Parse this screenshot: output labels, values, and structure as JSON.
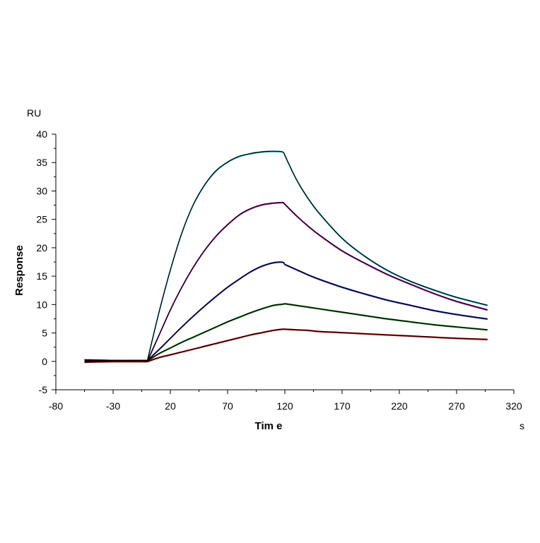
{
  "chart_data": {
    "type": "line",
    "title": "",
    "xlabel": "Tim e",
    "ylabel": "Response",
    "x_unit": "s",
    "y_unit": "RU",
    "xlim": [
      -80,
      320
    ],
    "ylim": [
      -5,
      40
    ],
    "x_ticks": [
      -80,
      -30,
      20,
      70,
      120,
      170,
      220,
      270,
      320
    ],
    "y_ticks": [
      -5,
      0,
      5,
      10,
      15,
      20,
      25,
      30,
      35,
      40
    ],
    "x_tick_labels": [
      "-80",
      "-30",
      "20",
      "70",
      "120",
      "170",
      "220",
      "270",
      "320"
    ],
    "y_tick_labels": [
      "-5",
      "0",
      "5",
      "10",
      "15",
      "20",
      "25",
      "30",
      "35",
      "40"
    ],
    "grid": false,
    "legend": "none",
    "x": [
      -55,
      -30,
      -5,
      0,
      10,
      20,
      30,
      40,
      50,
      60,
      70,
      80,
      90,
      100,
      110,
      118,
      120,
      130,
      140,
      150,
      170,
      190,
      210,
      230,
      250,
      270,
      297
    ],
    "series": [
      {
        "color": "#00c8d0",
        "values": [
          0.2,
          0.1,
          0.1,
          0.1,
          8.5,
          16.0,
          22.5,
          27.5,
          31.0,
          33.5,
          35.0,
          36.0,
          36.5,
          36.8,
          36.9,
          36.8,
          36.2,
          32.0,
          28.7,
          26.0,
          21.6,
          18.4,
          15.9,
          14.0,
          12.5,
          11.2,
          9.8
        ]
      },
      {
        "color": "#c000c0",
        "values": [
          0.0,
          0.0,
          0.0,
          0.0,
          4.5,
          9.0,
          13.0,
          16.5,
          19.5,
          22.0,
          24.0,
          25.7,
          26.8,
          27.5,
          27.8,
          27.9,
          27.6,
          25.6,
          23.8,
          22.2,
          19.4,
          17.2,
          15.2,
          13.5,
          11.9,
          10.5,
          9.0
        ]
      },
      {
        "color": "#2020d0",
        "values": [
          0.2,
          0.1,
          0.1,
          0.1,
          2.0,
          4.0,
          6.0,
          7.9,
          9.7,
          11.4,
          13.0,
          14.4,
          15.7,
          16.7,
          17.3,
          17.4,
          17.0,
          16.1,
          15.2,
          14.4,
          13.0,
          11.8,
          10.7,
          9.8,
          8.9,
          8.2,
          7.4
        ]
      },
      {
        "color": "#008000",
        "values": [
          0.0,
          0.0,
          0.0,
          0.0,
          1.3,
          2.3,
          3.3,
          4.2,
          5.1,
          6.0,
          6.9,
          7.7,
          8.5,
          9.2,
          9.8,
          10.0,
          10.1,
          9.8,
          9.5,
          9.2,
          8.6,
          8.0,
          7.4,
          6.9,
          6.4,
          6.0,
          5.5
        ]
      },
      {
        "color": "#e00000",
        "values": [
          -0.2,
          -0.1,
          -0.1,
          -0.1,
          0.6,
          1.1,
          1.6,
          2.1,
          2.6,
          3.1,
          3.6,
          4.1,
          4.6,
          5.0,
          5.4,
          5.6,
          5.6,
          5.5,
          5.4,
          5.2,
          5.0,
          4.8,
          4.6,
          4.4,
          4.2,
          4.0,
          3.8
        ]
      }
    ],
    "fit_color": "#000000"
  }
}
